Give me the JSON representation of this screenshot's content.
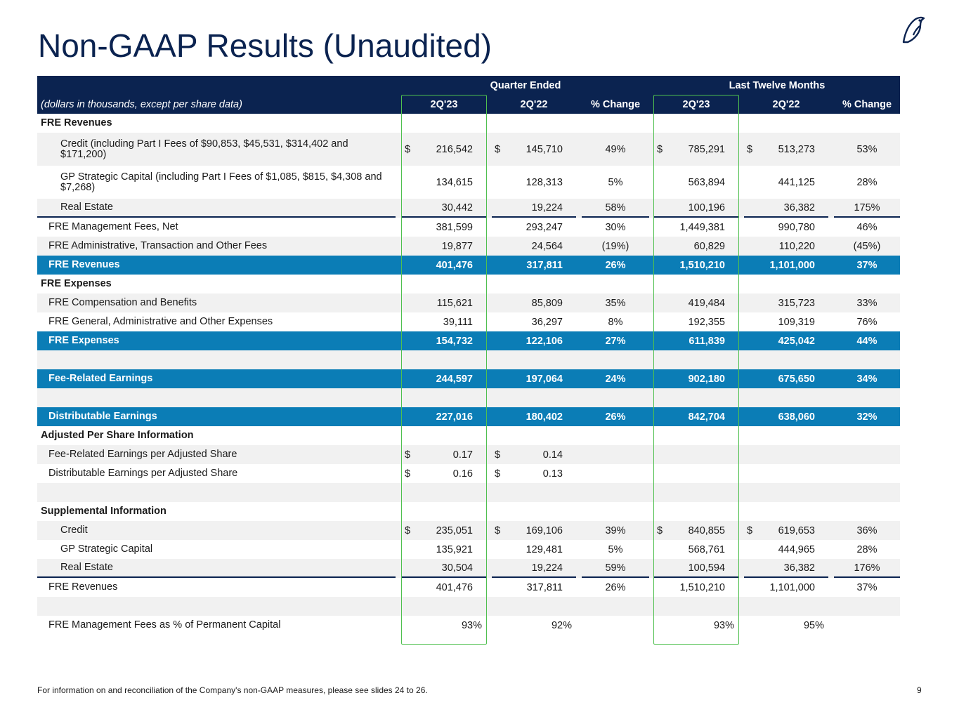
{
  "title": "Non-GAAP Results (Unaudited)",
  "logo_icon": "bird-logo-icon",
  "header": {
    "group_quarter": "Quarter Ended",
    "group_ltm": "Last Twelve Months",
    "units_note": "(dollars in thousands, except per share data)",
    "cols": [
      "2Q'23",
      "2Q'22",
      "% Change",
      "2Q'23",
      "2Q'22",
      "% Change"
    ]
  },
  "rows": [
    {
      "label": "FRE Revenues",
      "style": "section"
    },
    {
      "label": "Credit (including Part I Fees of $90,853, $45,531, $314,402 and $171,200)",
      "style": "alt tall",
      "indent": 2,
      "c1": "216,542",
      "c2": "145,710",
      "c3": "49%",
      "c4": "785,291",
      "c5": "513,273",
      "c6": "53%",
      "dollar": true
    },
    {
      "label": "GP Strategic Capital (including Part I Fees of $1,085, $815, $4,308 and $7,268)",
      "style": "tall",
      "indent": 2,
      "c1": "134,615",
      "c2": "128,313",
      "c3": "5%",
      "c4": "563,894",
      "c5": "441,125",
      "c6": "28%"
    },
    {
      "label": "Real Estate",
      "style": "alt",
      "indent": 2,
      "c1": "30,442",
      "c2": "19,224",
      "c3": "58%",
      "c4": "100,196",
      "c5": "36,382",
      "c6": "175%",
      "underline": true
    },
    {
      "label": "FRE Management Fees, Net",
      "style": "",
      "indent": 1,
      "c1": "381,599",
      "c2": "293,247",
      "c3": "30%",
      "c4": "1,449,381",
      "c5": "990,780",
      "c6": "46%"
    },
    {
      "label": "FRE Administrative, Transaction and Other Fees",
      "style": "alt",
      "indent": 1,
      "c1": "19,877",
      "c2": "24,564",
      "c3": "(19%)",
      "c4": "60,829",
      "c5": "110,220",
      "c6": "(45%)"
    },
    {
      "label": "FRE Revenues",
      "style": "blue",
      "indent": 1,
      "c1": "401,476",
      "c2": "317,811",
      "c3": "26%",
      "c4": "1,510,210",
      "c5": "1,101,000",
      "c6": "37%"
    },
    {
      "label": "FRE Expenses",
      "style": "section"
    },
    {
      "label": "FRE Compensation and Benefits",
      "style": "alt",
      "indent": 1,
      "c1": "115,621",
      "c2": "85,809",
      "c3": "35%",
      "c4": "419,484",
      "c5": "315,723",
      "c6": "33%"
    },
    {
      "label": "FRE General, Administrative and Other Expenses",
      "style": "",
      "indent": 1,
      "c1": "39,111",
      "c2": "36,297",
      "c3": "8%",
      "c4": "192,355",
      "c5": "109,319",
      "c6": "76%"
    },
    {
      "label": "FRE Expenses",
      "style": "blue",
      "indent": 1,
      "c1": "154,732",
      "c2": "122,106",
      "c3": "27%",
      "c4": "611,839",
      "c5": "425,042",
      "c6": "44%"
    },
    {
      "label": "",
      "style": "alt"
    },
    {
      "label": "Fee-Related Earnings",
      "style": "blue",
      "indent": 1,
      "c1": "244,597",
      "c2": "197,064",
      "c3": "24%",
      "c4": "902,180",
      "c5": "675,650",
      "c6": "34%"
    },
    {
      "label": "",
      "style": "alt"
    },
    {
      "label": "Distributable Earnings",
      "style": "blue",
      "indent": 1,
      "c1": "227,016",
      "c2": "180,402",
      "c3": "26%",
      "c4": "842,704",
      "c5": "638,060",
      "c6": "32%"
    },
    {
      "label": "Adjusted Per Share Information",
      "style": "section"
    },
    {
      "label": "Fee-Related Earnings per Adjusted Share",
      "style": "alt",
      "indent": 1,
      "c1": "0.17",
      "c2": "0.14",
      "dollar12": true
    },
    {
      "label": "Distributable Earnings per Adjusted Share",
      "style": "",
      "indent": 1,
      "c1": "0.16",
      "c2": "0.13",
      "dollar12": true
    },
    {
      "label": "",
      "style": "alt"
    },
    {
      "label": "Supplemental Information",
      "style": "section"
    },
    {
      "label": "Credit",
      "style": "alt",
      "indent": 2,
      "c1": "235,051",
      "c2": "169,106",
      "c3": "39%",
      "c4": "840,855",
      "c5": "619,653",
      "c6": "36%",
      "dollar": true
    },
    {
      "label": "GP Strategic Capital",
      "style": "",
      "indent": 2,
      "c1": "135,921",
      "c2": "129,481",
      "c3": "5%",
      "c4": "568,761",
      "c5": "444,965",
      "c6": "28%"
    },
    {
      "label": "Real Estate",
      "style": "alt",
      "indent": 2,
      "c1": "30,504",
      "c2": "19,224",
      "c3": "59%",
      "c4": "100,594",
      "c5": "36,382",
      "c6": "176%",
      "underline": true
    },
    {
      "label": "FRE Revenues",
      "style": "",
      "indent": 1,
      "c1": "401,476",
      "c2": "317,811",
      "c3": "26%",
      "c4": "1,510,210",
      "c5": "1,101,000",
      "c6": "37%"
    },
    {
      "label": "",
      "style": "alt"
    },
    {
      "label": "FRE Management Fees as % of Permanent Capital",
      "style": "",
      "indent": 1,
      "c1": "93%",
      "c2": "92%",
      "c4": "93%",
      "c5": "95%",
      "pctshift": true
    }
  ],
  "dollar_sign": "$",
  "footer": "For information on and reconciliation of the Company's non-GAAP measures, please see slides 24 to 26.",
  "page_number": "9",
  "colors": {
    "navy": "#0b2350",
    "blue": "#0b7db6",
    "highlight": "#4fc04f",
    "alt": "#f1f1f1"
  }
}
